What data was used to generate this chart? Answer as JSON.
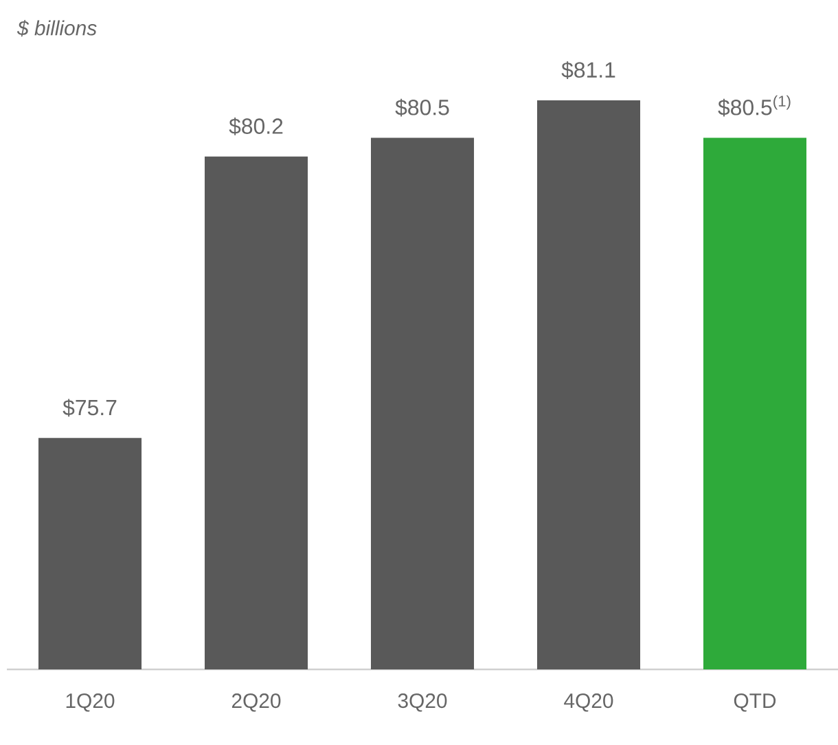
{
  "chart_data": {
    "type": "bar",
    "ylabel": "$ billions",
    "categories": [
      "1Q20",
      "2Q20",
      "3Q20",
      "4Q20",
      "QTD"
    ],
    "values": [
      75.7,
      80.2,
      80.5,
      81.1,
      80.5
    ],
    "colors": [
      "#595959",
      "#595959",
      "#595959",
      "#595959",
      "#2eaa3a"
    ],
    "value_labels": [
      "$75.7",
      "$80.2",
      "$80.5",
      "$81.1",
      "$80.5$^{(1)}$"
    ],
    "ylim": [
      72,
      81.1
    ],
    "tick_labels": "x"
  }
}
